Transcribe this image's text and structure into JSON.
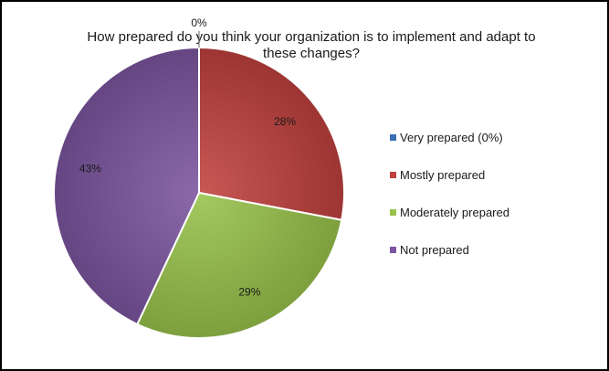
{
  "chart_data": {
    "type": "pie",
    "title_lines": [
      "How prepared do you think your organization is to implement and adapt to",
      "these changes?"
    ],
    "slices": [
      {
        "label": "Very prepared (0%)",
        "value": 0,
        "display": "0%",
        "color": "#3B6FB6"
      },
      {
        "label": "Mostly prepared",
        "value": 28,
        "display": "28%",
        "color": "#C0413E"
      },
      {
        "label": "Moderately prepared",
        "value": 29,
        "display": "29%",
        "color": "#98C24A"
      },
      {
        "label": "Not prepared",
        "value": 43,
        "display": "43%",
        "color": "#7B55A0"
      }
    ],
    "start_angle_deg": 0,
    "direction": "clockwise",
    "legend_position": "right",
    "data_labels": true
  }
}
